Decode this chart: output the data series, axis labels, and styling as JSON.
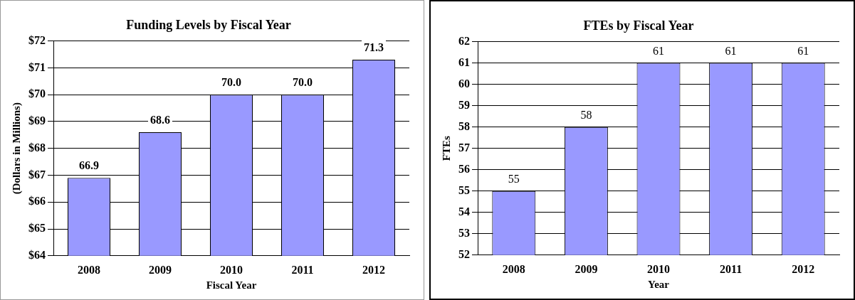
{
  "chart_data": [
    {
      "type": "bar",
      "title": "Funding Levels by Fiscal Year",
      "xlabel": "Fiscal Year",
      "ylabel": "(Dollars in Millions)",
      "categories": [
        "2008",
        "2009",
        "2010",
        "2011",
        "2012"
      ],
      "values": [
        66.9,
        68.6,
        70.0,
        70.0,
        71.3
      ],
      "value_labels": [
        "66.9",
        "68.6",
        "70.0",
        "70.0",
        "71.3"
      ],
      "color": "#9999ff",
      "ylim": [
        64,
        72
      ],
      "yticks": [
        {
          "value": 64,
          "label": "$64"
        },
        {
          "value": 65,
          "label": "$65"
        },
        {
          "value": 66,
          "label": "$66"
        },
        {
          "value": 67,
          "label": "$67"
        },
        {
          "value": 68,
          "label": "$68"
        },
        {
          "value": 69,
          "label": "$69"
        },
        {
          "value": 70,
          "label": "$70"
        },
        {
          "value": 71,
          "label": "$71"
        },
        {
          "value": 72,
          "label": "$72"
        }
      ],
      "grid": "y",
      "legend": false
    },
    {
      "type": "bar",
      "title": "FTEs by Fiscal Year",
      "xlabel": "Year",
      "ylabel": "FTEs",
      "categories": [
        "2008",
        "2009",
        "2010",
        "2011",
        "2012"
      ],
      "values": [
        55,
        58,
        61,
        61,
        61
      ],
      "data_labels": true,
      "color": "#9999ff",
      "ylim": [
        52,
        62
      ],
      "yticks": [
        52,
        53,
        54,
        55,
        56,
        57,
        58,
        59,
        60,
        61,
        62
      ],
      "grid": "y",
      "legend": false
    }
  ]
}
